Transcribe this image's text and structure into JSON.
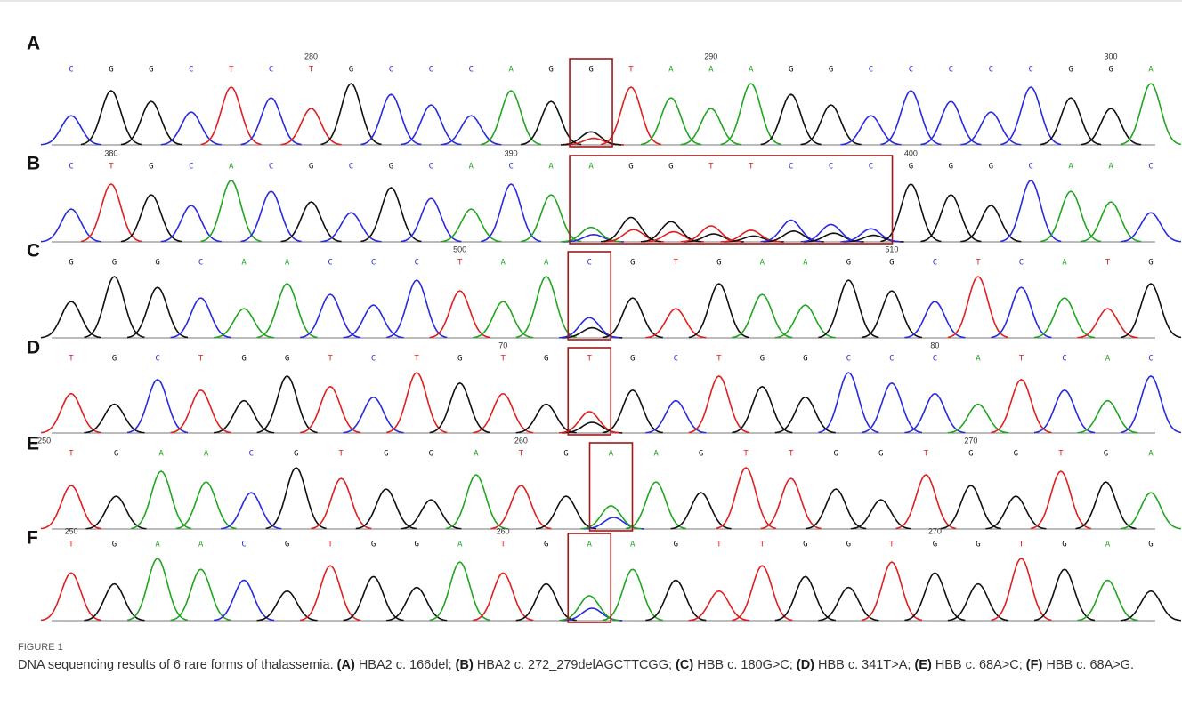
{
  "figure": {
    "panels": [
      {
        "label": "A",
        "bases": [
          "C",
          "G",
          "G",
          "C",
          "T",
          "C",
          "T",
          "G",
          "C",
          "C",
          "C",
          "A",
          "G",
          "G",
          "T",
          "A",
          "A",
          "A",
          "G",
          "G",
          "C",
          "C",
          "C",
          "C",
          "C",
          "G",
          "G",
          "A"
        ],
        "positions": [
          "280",
          "290",
          "300"
        ]
      },
      {
        "label": "B",
        "bases": [
          "C",
          "T",
          "G",
          "C",
          "A",
          "C",
          "G",
          "C",
          "G",
          "C",
          "A",
          "C",
          "A",
          "A",
          "G",
          "G",
          "T",
          "T",
          "C",
          "C",
          "C",
          "G",
          "G",
          "G",
          "C",
          "A",
          "A",
          "C"
        ],
        "positions": [
          "380",
          "390",
          "400"
        ]
      },
      {
        "label": "C",
        "bases": [
          "G",
          "G",
          "G",
          "C",
          "A",
          "A",
          "C",
          "C",
          "C",
          "T",
          "A",
          "A",
          "C",
          "G",
          "T",
          "G",
          "A",
          "A",
          "G",
          "G",
          "C",
          "T",
          "C",
          "A",
          "T",
          "G"
        ],
        "positions": [
          "500",
          "510"
        ]
      },
      {
        "label": "D",
        "bases": [
          "T",
          "G",
          "C",
          "T",
          "G",
          "G",
          "T",
          "C",
          "T",
          "G",
          "T",
          "G",
          "T",
          "G",
          "C",
          "T",
          "G",
          "G",
          "C",
          "C",
          "C",
          "A",
          "T",
          "C",
          "A",
          "C"
        ],
        "positions": [
          "70",
          "80"
        ]
      },
      {
        "label": "E",
        "bases": [
          "T",
          "G",
          "A",
          "A",
          "C",
          "G",
          "T",
          "G",
          "G",
          "A",
          "T",
          "G",
          "A",
          "A",
          "G",
          "T",
          "T",
          "G",
          "G",
          "T",
          "G",
          "G",
          "T",
          "G",
          "A"
        ],
        "positions": [
          "250",
          "260",
          "270"
        ]
      },
      {
        "label": "F",
        "bases": [
          "T",
          "G",
          "A",
          "A",
          "C",
          "G",
          "T",
          "G",
          "G",
          "A",
          "T",
          "G",
          "A",
          "A",
          "G",
          "T",
          "T",
          "G",
          "G",
          "T",
          "G",
          "G",
          "T",
          "G",
          "A",
          "G"
        ],
        "positions": [
          "250",
          "260",
          "270"
        ]
      }
    ],
    "caption": {
      "figure_label": "FIGURE 1",
      "intro": "DNA sequencing results of 6 rare forms of thalassemia.",
      "items": [
        {
          "label": "(A)",
          "text": "HBA2 c. 166del;"
        },
        {
          "label": "(B)",
          "text": "HBA2 c. 272_279delAGCTTCGG;"
        },
        {
          "label": "(C)",
          "text": "HBB c. 180G>C;"
        },
        {
          "label": "(D)",
          "text": "HBB c. 341T>A;"
        },
        {
          "label": "(E)",
          "text": "HBB c. 68A>C;"
        },
        {
          "label": "(F)",
          "text": "HBB c. 68A>G."
        }
      ]
    }
  }
}
